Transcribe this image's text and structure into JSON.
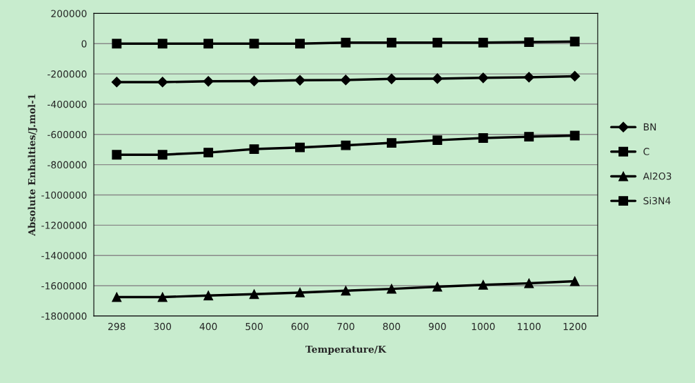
{
  "chart_data": {
    "type": "line",
    "xlabel": "Temperature/K",
    "ylabel": "Absolute Enhalties/J.mol-1",
    "categories": [
      "298",
      "300",
      "400",
      "500",
      "600",
      "700",
      "800",
      "900",
      "1000",
      "1100",
      "1200"
    ],
    "series": [
      {
        "name": "BN",
        "color": "#000000",
        "marker": "diamond",
        "values": [
          -254000,
          -254000,
          -249000,
          -247000,
          -242000,
          -240000,
          -233000,
          -231000,
          -226000,
          -222000,
          -215000
        ]
      },
      {
        "name": "C",
        "color": "#000000",
        "marker": "square",
        "values": [
          0,
          0,
          0,
          0,
          0,
          7000,
          7000,
          7000,
          7000,
          10000,
          14000
        ]
      },
      {
        "name": "Al2O3",
        "color": "#000000",
        "marker": "triangle",
        "values": [
          -1675000,
          -1675000,
          -1665000,
          -1656000,
          -1645000,
          -1633000,
          -1621000,
          -1607000,
          -1594000,
          -1584000,
          -1570000
        ]
      },
      {
        "name": "Si3N4",
        "color": "#000000",
        "marker": "square",
        "values": [
          -734000,
          -734000,
          -720000,
          -697000,
          -686000,
          -672000,
          -656000,
          -638000,
          -624000,
          -615000,
          -608000
        ]
      }
    ],
    "ylim": [
      -1800000,
      200000
    ],
    "yticks": [
      -1800000,
      -1600000,
      -1400000,
      -1200000,
      -1000000,
      -800000,
      -600000,
      -400000,
      -200000,
      0,
      200000
    ],
    "grid": "y",
    "legend": "right",
    "line_style": "solid"
  }
}
